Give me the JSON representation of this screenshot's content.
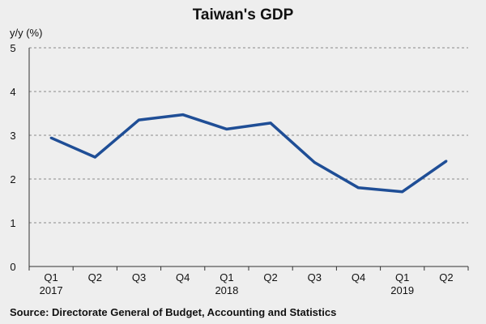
{
  "chart_data": {
    "type": "line",
    "title": "Taiwan's GDP",
    "ylabel": "y/y (%)",
    "xlabel": "",
    "ylim": [
      0,
      5
    ],
    "yticks": [
      "0",
      "1",
      "2",
      "3",
      "4",
      "5"
    ],
    "grid": true,
    "categories": [
      "Q1",
      "Q2",
      "Q3",
      "Q4",
      "Q1",
      "Q2",
      "Q3",
      "Q4",
      "Q1",
      "Q2"
    ],
    "year_labels": [
      {
        "index": 0,
        "label": "2017"
      },
      {
        "index": 4,
        "label": "2018"
      },
      {
        "index": 8,
        "label": "2019"
      }
    ],
    "series": [
      {
        "name": "Taiwan's GDP y/y",
        "color": "#1f4e96",
        "values": [
          2.94,
          2.5,
          3.35,
          3.47,
          3.14,
          3.28,
          2.38,
          1.8,
          1.71,
          2.41
        ]
      }
    ],
    "source": "Source: Directorate General of Budget, Accounting and Statistics"
  }
}
